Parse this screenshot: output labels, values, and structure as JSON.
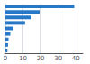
{
  "chart_data": {
    "type": "bar",
    "orientation": "horizontal",
    "categories": [
      null,
      null,
      null,
      null,
      null,
      null,
      null,
      null,
      null
    ],
    "values": [
      39.12,
      19.5,
      14.8,
      11.2,
      4.5,
      2.8,
      1.8,
      1.5,
      1.2
    ],
    "color": "#2878c8",
    "xlim": [
      0,
      44
    ],
    "xticks": [
      0,
      10,
      20,
      30,
      40
    ],
    "grid": true,
    "tick_labels": "x"
  }
}
